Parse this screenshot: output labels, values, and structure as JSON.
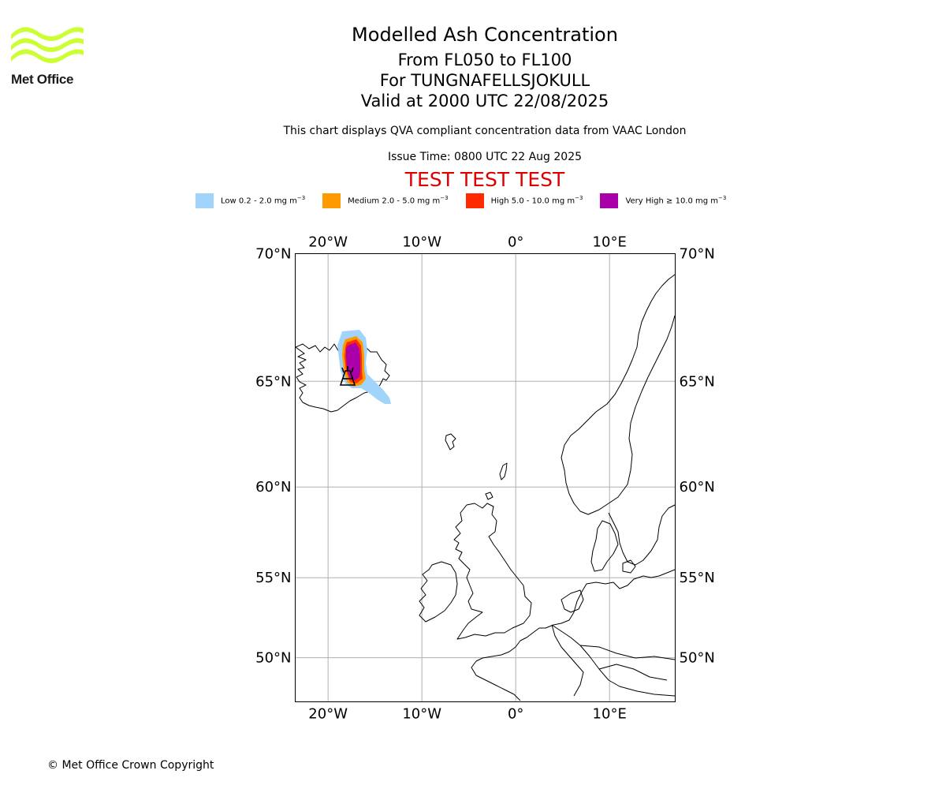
{
  "logo": {
    "name": "Met Office"
  },
  "header": {
    "title": "Modelled Ash Concentration",
    "subtitle_levels": "From FL050 to FL100",
    "subtitle_volcano": "For TUNGNAFELLSJOKULL",
    "subtitle_valid": "Valid at 2000 UTC 22/08/2025",
    "note": "This chart displays QVA compliant concentration data from VAAC London",
    "issue_time": "Issue Time: 0800 UTC 22 Aug 2025",
    "test_banner": "TEST TEST TEST"
  },
  "legend": [
    {
      "label": "Low 0.2 - 2.0 mg m",
      "sup": "−3",
      "color": "#a0d4fb"
    },
    {
      "label": "Medium 2.0 - 5.0 mg m",
      "sup": "−3",
      "color": "#ff9900"
    },
    {
      "label": "High 5.0 - 10.0 mg m",
      "sup": "−3",
      "color": "#ff2a00"
    },
    {
      "label": "Very High  ≥  10.0 mg m",
      "sup": "−3",
      "color": "#aa00aa"
    }
  ],
  "map": {
    "lon_range": [
      -23.5,
      17
    ],
    "lat_range": [
      47,
      70
    ],
    "lon_ticks": [
      {
        "value": -20,
        "label": "20°W"
      },
      {
        "value": -10,
        "label": "10°W"
      },
      {
        "value": 0,
        "label": "0°"
      },
      {
        "value": 10,
        "label": "10°E"
      }
    ],
    "lat_ticks": [
      {
        "value": 70,
        "label": "70°N"
      },
      {
        "value": 65,
        "label": "65°N"
      },
      {
        "value": 60,
        "label": "60°N"
      },
      {
        "value": 55,
        "label": "55°N"
      },
      {
        "value": 50,
        "label": "50°N"
      }
    ],
    "volcano_icon": "volcano-icon",
    "volcano_location": {
      "lat": 64.75,
      "lon": -17.9
    }
  },
  "footer": {
    "copyright": "© Met Office Crown Copyright"
  }
}
